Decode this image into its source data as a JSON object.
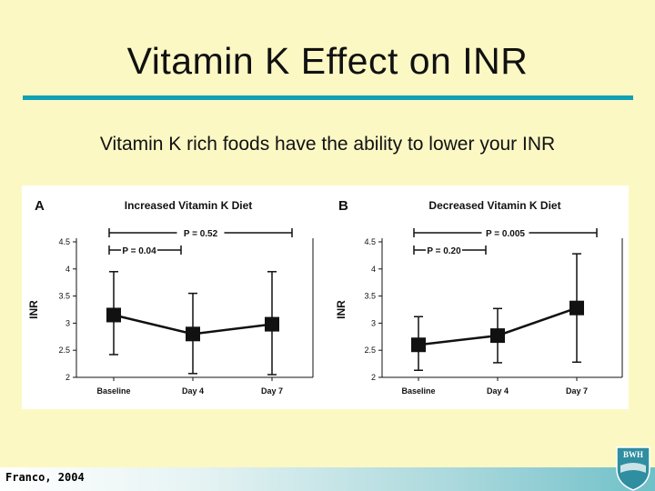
{
  "slide": {
    "title": "Vitamin K Effect on INR",
    "subtitle": "Vitamin K rich foods have the ability to lower your INR",
    "footer": "Franco, 2004",
    "logo_text": "BWH"
  },
  "colors": {
    "background": "#fbf8c4",
    "accent_rule": "#14a0b4",
    "plot_ink": "#111111"
  },
  "chart_data": [
    {
      "type": "line",
      "panel_label": "A",
      "title": "Increased Vitamin K Diet",
      "ylabel": "INR",
      "xlabel": "",
      "categories": [
        "Baseline",
        "Day 4",
        "Day 7"
      ],
      "yticks": [
        "4.5",
        "4",
        "3.5",
        "3",
        "2.5",
        "2"
      ],
      "ylim": [
        2,
        4.5
      ],
      "grid": false,
      "series": [
        {
          "values": [
            3.15,
            2.8,
            2.98
          ],
          "error_low": [
            2.42,
            2.07,
            2.05
          ],
          "error_high": [
            3.95,
            3.55,
            3.95
          ]
        }
      ],
      "comparisons": [
        {
          "text": "P = 0.52",
          "from": 0,
          "to": 2
        },
        {
          "text": "P = 0.04",
          "from": 0,
          "to": 1
        }
      ]
    },
    {
      "type": "line",
      "panel_label": "B",
      "title": "Decreased Vitamin K Diet",
      "ylabel": "INR",
      "xlabel": "",
      "categories": [
        "Baseline",
        "Day 4",
        "Day 7"
      ],
      "yticks": [
        "4.5",
        "4",
        "3.5",
        "3",
        "2.5",
        "2"
      ],
      "ylim": [
        2,
        4.5
      ],
      "grid": false,
      "series": [
        {
          "values": [
            2.6,
            2.77,
            3.28
          ],
          "error_low": [
            2.13,
            2.27,
            2.28
          ],
          "error_high": [
            3.12,
            3.27,
            4.28
          ]
        }
      ],
      "comparisons": [
        {
          "text": "P = 0.005",
          "from": 0,
          "to": 2
        },
        {
          "text": "P = 0.20",
          "from": 0,
          "to": 1
        }
      ]
    }
  ]
}
